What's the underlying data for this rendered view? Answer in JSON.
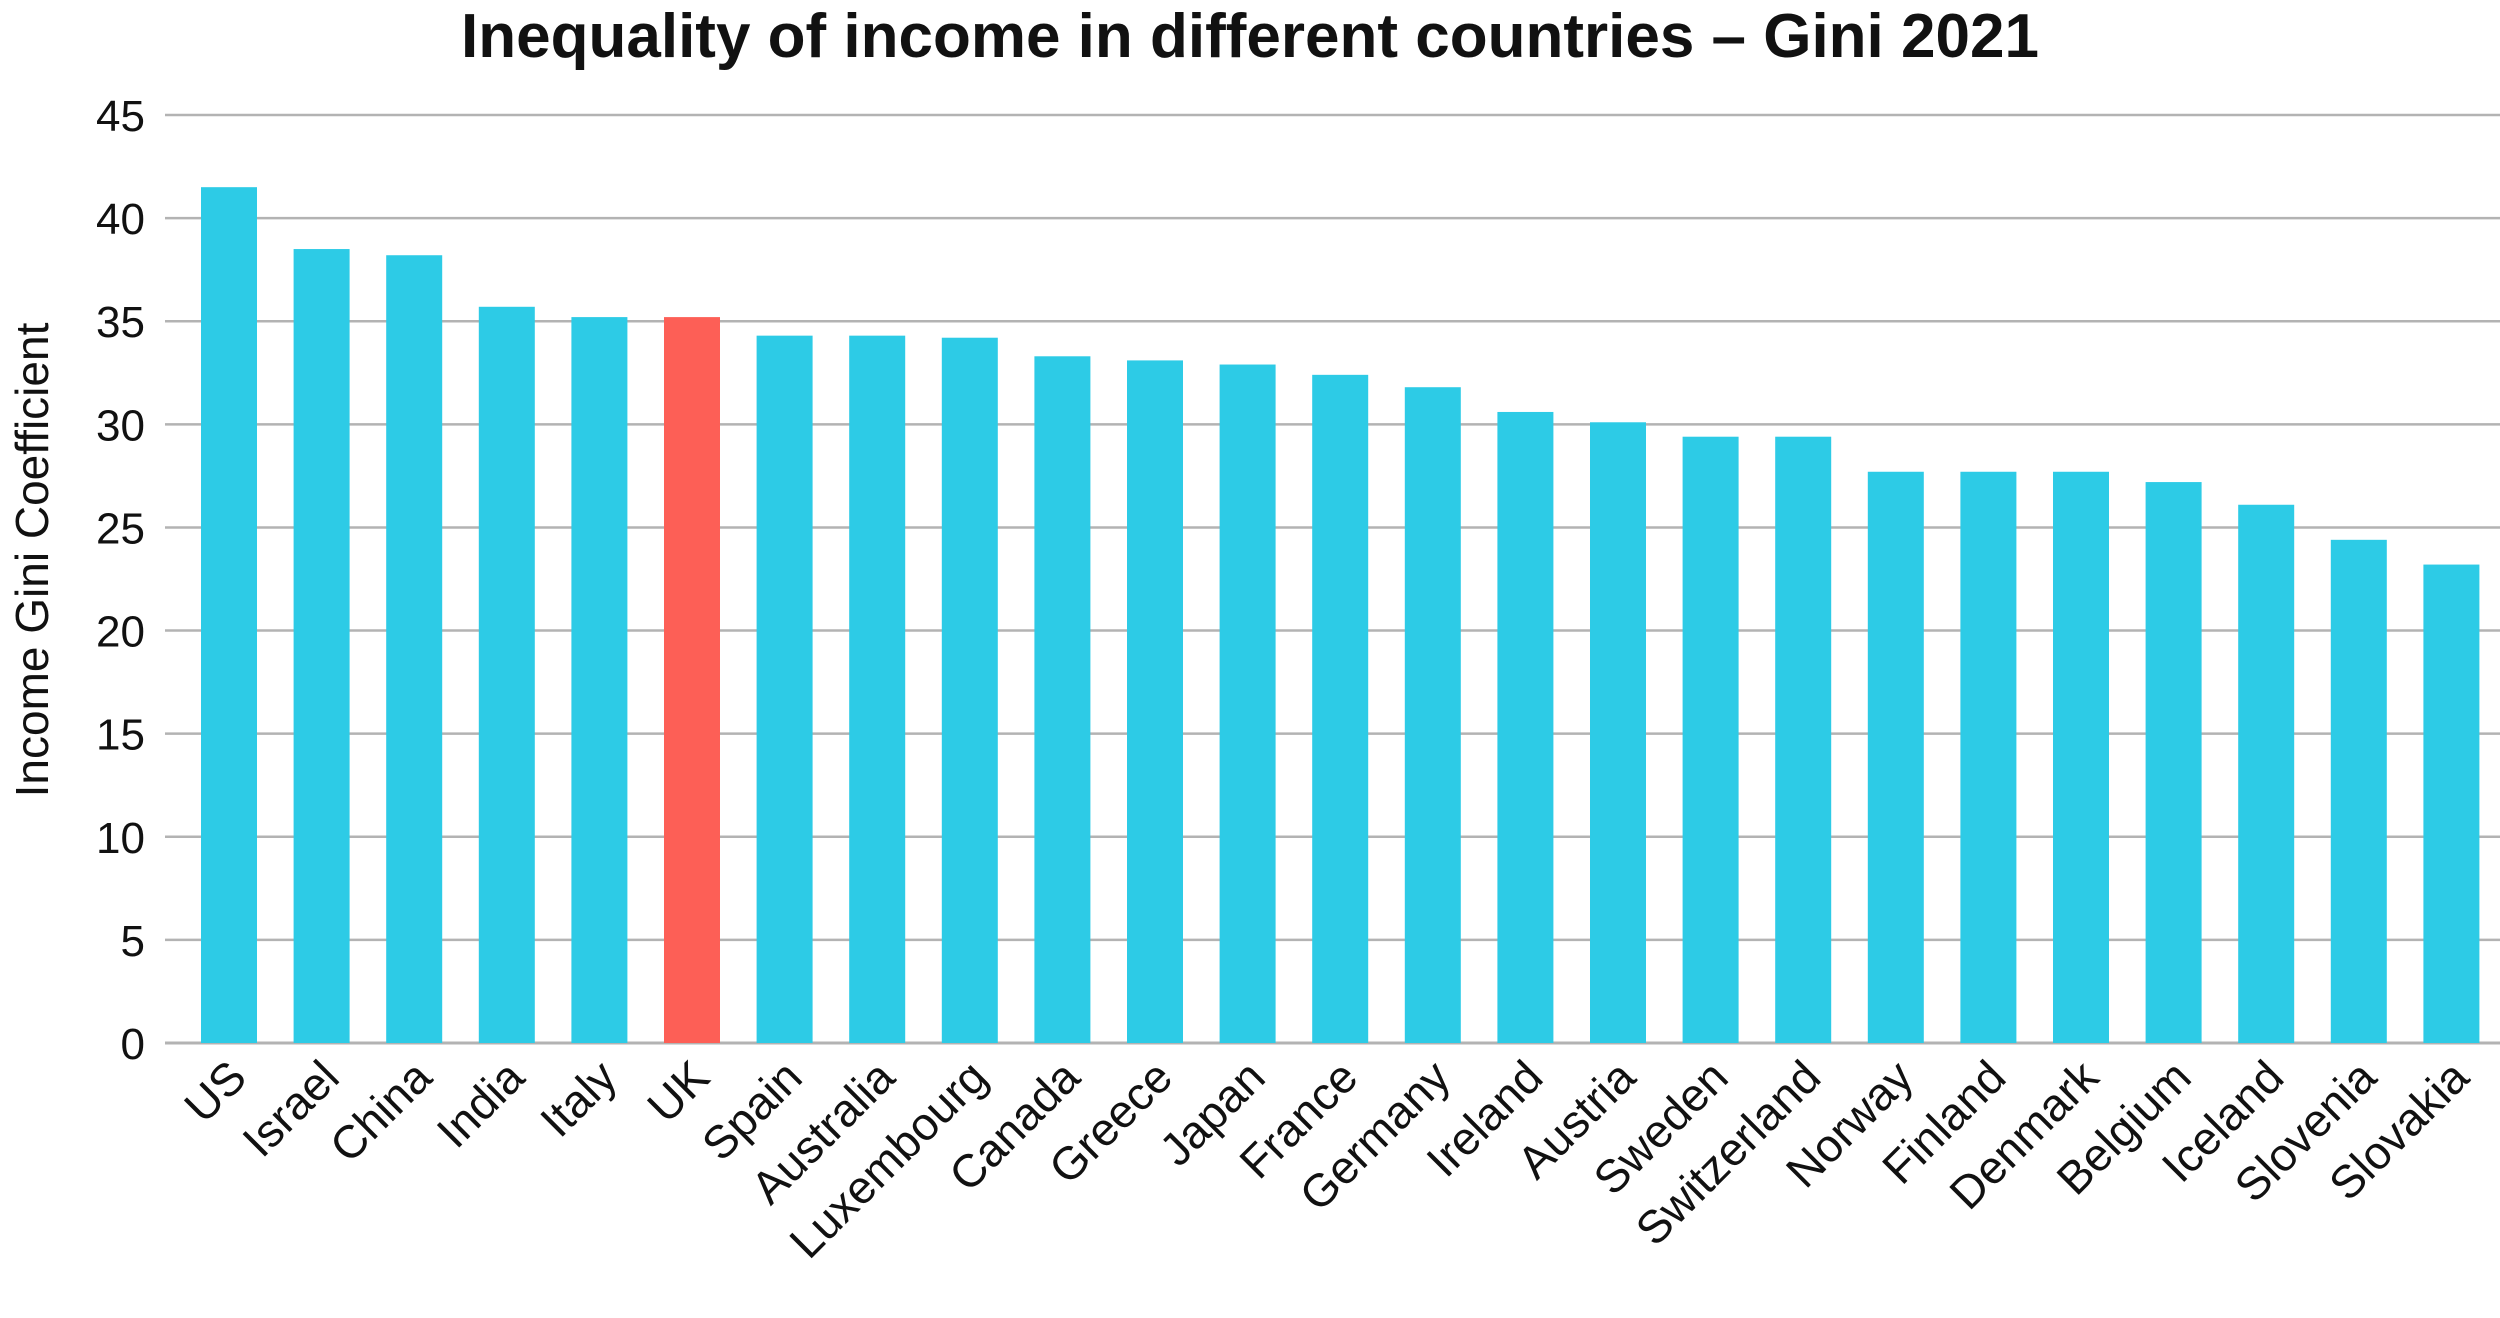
{
  "chart_data": {
    "type": "bar",
    "title": "Inequality of income in different countries – Gini 2021",
    "xlabel": "",
    "ylabel": "Income Gini Coefficient",
    "ylim": [
      0,
      45
    ],
    "yticks": [
      0,
      5,
      10,
      15,
      20,
      25,
      30,
      35,
      40,
      45
    ],
    "grid": true,
    "categories": [
      "US",
      "Israel",
      "China",
      "India",
      "Italy",
      "UK",
      "Spain",
      "Australia",
      "Luxembourg",
      "Canada",
      "Greece",
      "Japan",
      "France",
      "Germany",
      "Ireland",
      "Austria",
      "Sweden",
      "Switzerland",
      "Norway",
      "Finland",
      "Denmark",
      "Belgium",
      "Iceland",
      "Slovenia",
      "Slovakia"
    ],
    "values": [
      41.5,
      38.5,
      38.2,
      35.7,
      35.2,
      35.2,
      34.3,
      34.3,
      34.2,
      33.3,
      33.1,
      32.9,
      32.4,
      31.8,
      30.6,
      30.1,
      29.4,
      29.4,
      27.7,
      27.7,
      27.7,
      27.2,
      26.1,
      24.4,
      23.2
    ],
    "highlight": "UK",
    "colors": {
      "bar": "#2dcbe6",
      "highlight": "#fd5f56",
      "grid": "#b3b3b3",
      "text": "#111111"
    }
  }
}
